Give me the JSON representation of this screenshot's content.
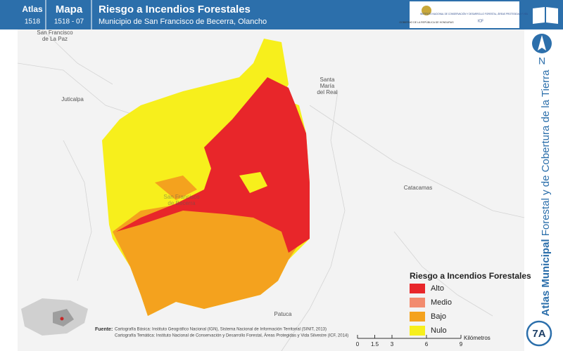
{
  "header": {
    "atlas_label": "Atlas",
    "atlas_number": "1518",
    "map_label": "Mapa",
    "map_number": "1518 - 07",
    "title": "Riesgo a Incendios Forestales",
    "subtitle": "Municipio de San Francisco de Becerra, Olancho"
  },
  "logos": {
    "government": "GOBIERNO DE LA REPÚBLICA DE HONDURAS",
    "institute": "INSTITUTO NACIONAL DE CONSERVACIÓN Y DESARROLLO FORESTAL, ÁREAS PROTEGIDAS Y VIDA SILVESTRE",
    "acronym": "ICF"
  },
  "places": [
    {
      "lines": [
        "San Francisco",
        "de La Paz"
      ]
    },
    {
      "lines": [
        "Juticalpa"
      ]
    },
    {
      "lines": [
        "Santa",
        "María",
        "del Real"
      ]
    },
    {
      "lines": [
        "Catacamas"
      ]
    },
    {
      "lines": [
        "San Francisco",
        "de Becerra"
      ]
    },
    {
      "lines": [
        "Patuca"
      ]
    }
  ],
  "legend": {
    "title": "Riesgo a Incendios Forestales",
    "items": [
      {
        "label": "Alto",
        "color": "#e8262a"
      },
      {
        "label": "Medio",
        "color": "#f28b6e"
      },
      {
        "label": "Bajo",
        "color": "#f4a21e"
      },
      {
        "label": "Nulo",
        "color": "#f7ef1c"
      }
    ]
  },
  "source": {
    "label": "Fuente:",
    "lines": [
      "Cartografía Básica: Instituto Geográfico Nacional (IGN), Sistema Nacional de Información Territorial (SINIT, 2013)",
      "Cartografía Temática: Instituto Nacional de Conservación y Desarrollo Forestal, Áreas Protegidas y Vida Silvestre (ICF, 2014)"
    ]
  },
  "scale": {
    "ticks": [
      0,
      1.5,
      3,
      6,
      9
    ],
    "unit": "Kilómetros"
  },
  "sidebar": {
    "north": "N",
    "title_bold": "Atlas Municipal",
    "title_rest": "Forestal y de Cobertura de la Tierra",
    "code": "7A"
  }
}
